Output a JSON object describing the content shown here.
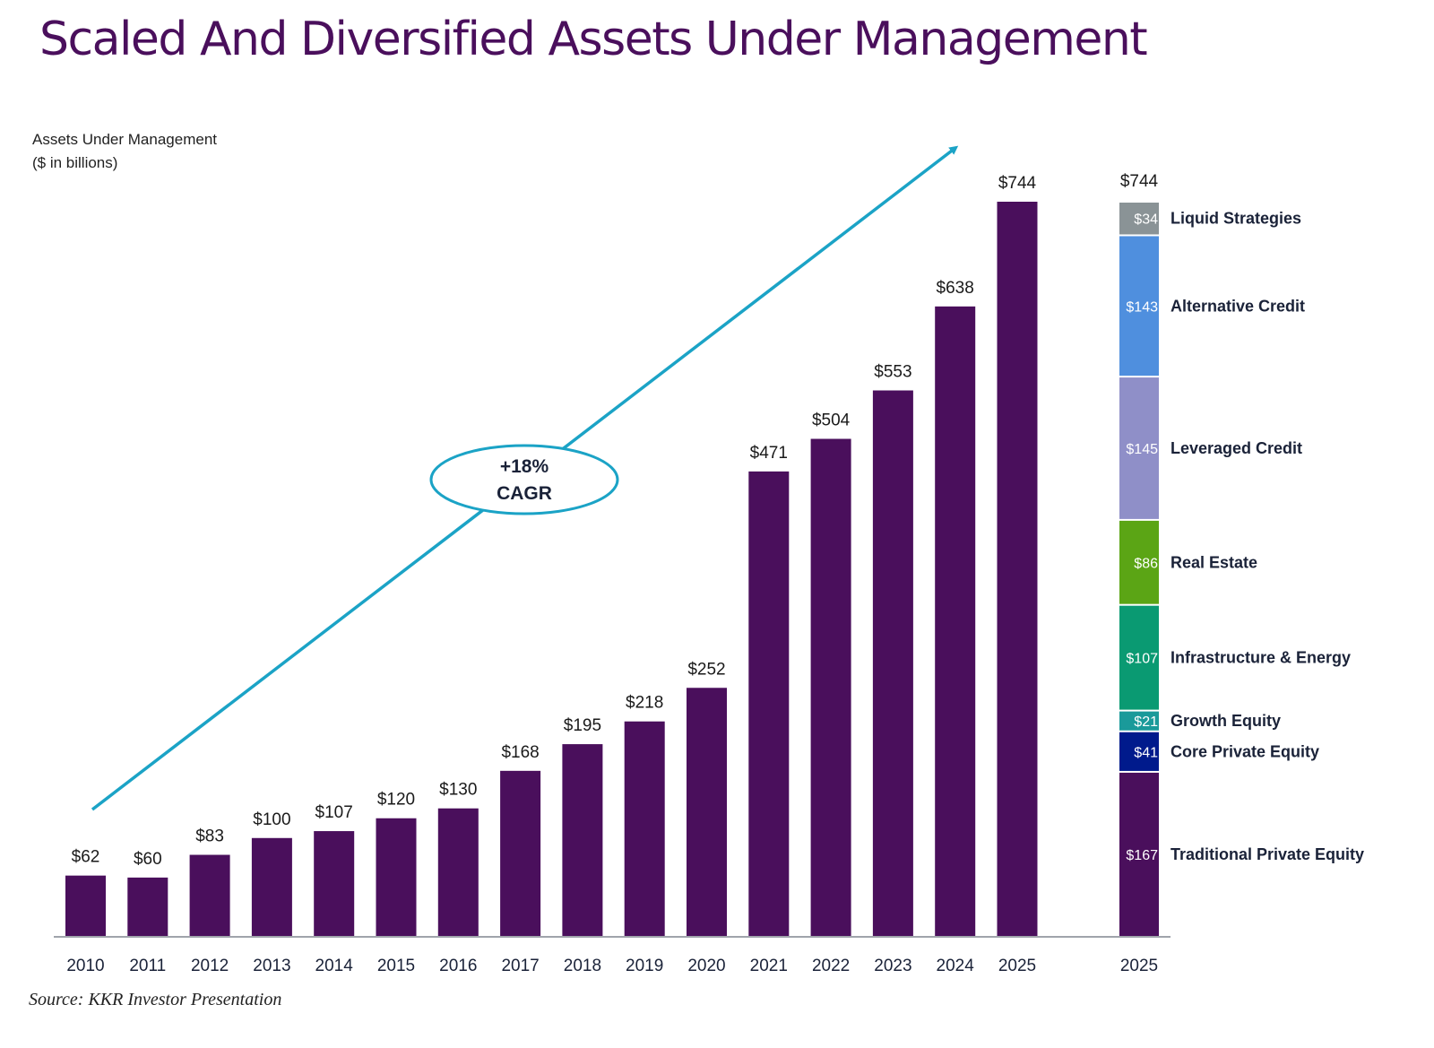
{
  "page": {
    "title": "Scaled And Diversified Assets Under Management",
    "ylabel_line1": "Assets Under Management",
    "ylabel_line2": "($ in billions)",
    "source": "Source: KKR Investor Presentation"
  },
  "chart_data": [
    {
      "type": "bar",
      "title": "Assets Under Management ($ in billions)",
      "xlabel": "",
      "ylabel": "Assets Under Management ($ in billions)",
      "categories": [
        "2010",
        "2011",
        "2012",
        "2013",
        "2014",
        "2015",
        "2016",
        "2017",
        "2018",
        "2019",
        "2020",
        "2021",
        "2022",
        "2023",
        "2024",
        "2025"
      ],
      "values": [
        62,
        60,
        83,
        100,
        107,
        120,
        130,
        168,
        195,
        218,
        252,
        471,
        504,
        553,
        638,
        744
      ],
      "data_labels": [
        "$62",
        "$60",
        "$83",
        "$100",
        "$107",
        "$120",
        "$130",
        "$168",
        "$195",
        "$218",
        "$252",
        "$471",
        "$504",
        "$553",
        "$638",
        "$744"
      ],
      "ylim": [
        0,
        744
      ],
      "grid": false,
      "bar_color": "#4a0f5c",
      "annotation": {
        "type": "arrow",
        "label_line1": "+18%",
        "label_line2": "CAGR",
        "color": "#1ba3c6"
      }
    },
    {
      "type": "bar",
      "stacked": true,
      "title": "2025 AUM Breakdown",
      "categories": [
        "2025"
      ],
      "total_label": "$744",
      "total": 744,
      "series": [
        {
          "name": "Traditional Private Equity",
          "values": [
            167
          ],
          "label": "$167",
          "color": "#4a0f5c"
        },
        {
          "name": "Core Private Equity",
          "values": [
            41
          ],
          "label": "$41",
          "color": "#001a8c"
        },
        {
          "name": "Growth Equity",
          "values": [
            21
          ],
          "label": "$21",
          "color": "#1a9a9a"
        },
        {
          "name": "Infrastructure & Energy",
          "values": [
            107
          ],
          "label": "$107",
          "color": "#0a9a72"
        },
        {
          "name": "Real Estate",
          "values": [
            86
          ],
          "label": "$86",
          "color": "#5ba515"
        },
        {
          "name": "Leveraged Credit",
          "values": [
            145
          ],
          "label": "$145",
          "color": "#8f8fc8"
        },
        {
          "name": "Alternative Credit",
          "values": [
            143
          ],
          "label": "$143",
          "color": "#4f8fde"
        },
        {
          "name": "Liquid Strategies",
          "values": [
            34
          ],
          "label": "$34",
          "color": "#8a9396"
        }
      ],
      "legend": "right"
    }
  ]
}
